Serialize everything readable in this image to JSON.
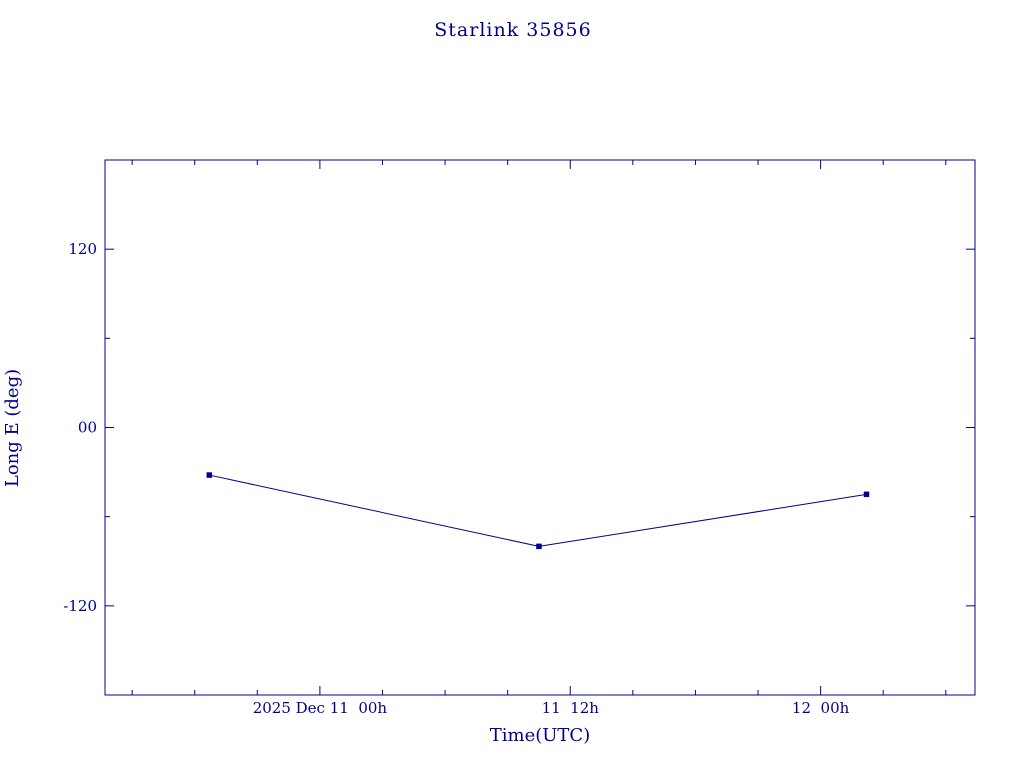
{
  "page": {
    "background": "#ffffff",
    "accent_color": "#00008B"
  },
  "chart_data": {
    "type": "line",
    "title": "Starlink 35856",
    "xlabel": "Time(UTC)",
    "ylabel": "Long E (deg)",
    "color": "#00008B",
    "marker": "square",
    "grid": false,
    "x_unit": "hours since 2025 Dec 11 00h UTC",
    "xlim": [
      -10.3,
      31.4
    ],
    "ylim": [
      -180,
      180
    ],
    "x_ticks": [
      {
        "value": 0,
        "label": "2025 Dec 11  00h"
      },
      {
        "value": 12,
        "label": "11  12h"
      },
      {
        "value": 24,
        "label": "12  00h"
      }
    ],
    "x_minor_step": 3,
    "y_ticks": [
      {
        "value": 120,
        "label": "120"
      },
      {
        "value": 0,
        "label": "00"
      },
      {
        "value": -120,
        "label": "-120"
      }
    ],
    "y_minor_step": 60,
    "series": [
      {
        "name": "Starlink 35856 longitude",
        "points": [
          {
            "x": -5.3,
            "y": -32,
            "time_utc": "2025 Dec 10 ~18:40",
            "long_e_deg": -32
          },
          {
            "x": 10.5,
            "y": -80,
            "time_utc": "2025 Dec 11 ~10:30",
            "long_e_deg": -80
          },
          {
            "x": 26.2,
            "y": -45,
            "time_utc": "2025 Dec 12 ~02:10",
            "long_e_deg": -45
          }
        ]
      }
    ]
  }
}
